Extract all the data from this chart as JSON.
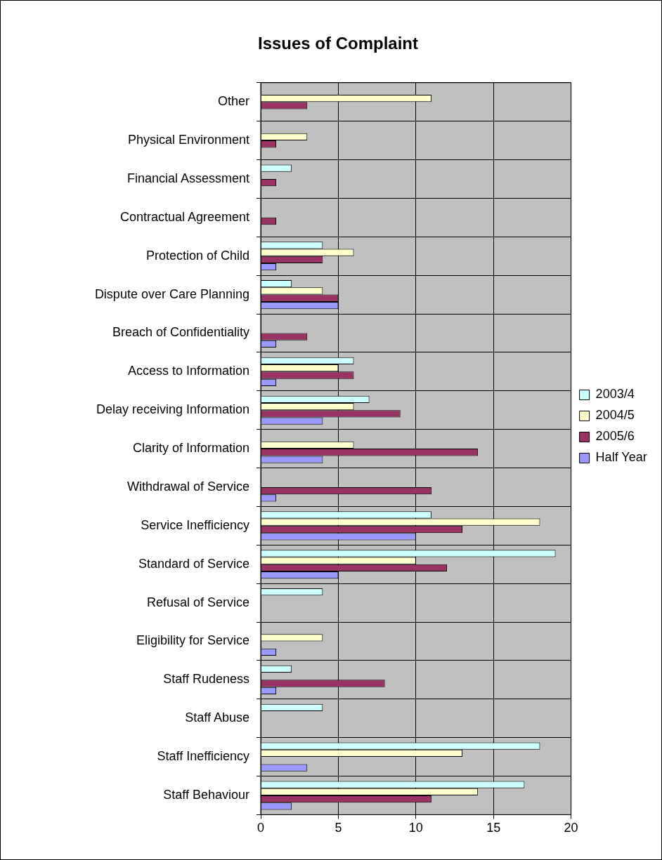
{
  "chart_data": {
    "type": "bar",
    "orientation": "horizontal",
    "title": "Issues of Complaint",
    "categories": [
      "Other",
      "Physical Environment",
      "Financial Assessment",
      "Contractual Agreement",
      "Protection of Child",
      "Dispute over Care Planning",
      "Breach of Confidentiality",
      "Access to Information",
      "Delay receiving Information",
      "Clarity of Information",
      "Withdrawal of Service",
      "Service Inefficiency",
      "Standard of Service",
      "Refusal of Service",
      "Eligibility for Service",
      "Staff Rudeness",
      "Staff Abuse",
      "Staff Inefficiency",
      "Staff Behaviour"
    ],
    "series": [
      {
        "name": "2003/4",
        "color": "#ccffff",
        "values": [
          0,
          0,
          2,
          0,
          4,
          2,
          0,
          6,
          7,
          0,
          0,
          11,
          19,
          4,
          0,
          2,
          4,
          18,
          17
        ]
      },
      {
        "name": "2004/5",
        "color": "#ffffcc",
        "values": [
          11,
          3,
          0,
          0,
          6,
          4,
          0,
          5,
          6,
          6,
          0,
          18,
          10,
          0,
          4,
          0,
          0,
          13,
          14
        ]
      },
      {
        "name": "2005/6",
        "color": "#993366",
        "values": [
          3,
          1,
          1,
          1,
          4,
          5,
          3,
          6,
          9,
          14,
          11,
          13,
          12,
          0,
          0,
          8,
          0,
          0,
          11
        ]
      },
      {
        "name": "Half Year",
        "color": "#9999ff",
        "values": [
          0,
          0,
          0,
          0,
          1,
          5,
          1,
          1,
          4,
          4,
          1,
          10,
          5,
          0,
          1,
          1,
          0,
          3,
          2
        ]
      }
    ],
    "xlim": [
      0,
      20
    ],
    "xticks": [
      0,
      5,
      10,
      15,
      20
    ],
    "grid": true,
    "legend": "right"
  }
}
